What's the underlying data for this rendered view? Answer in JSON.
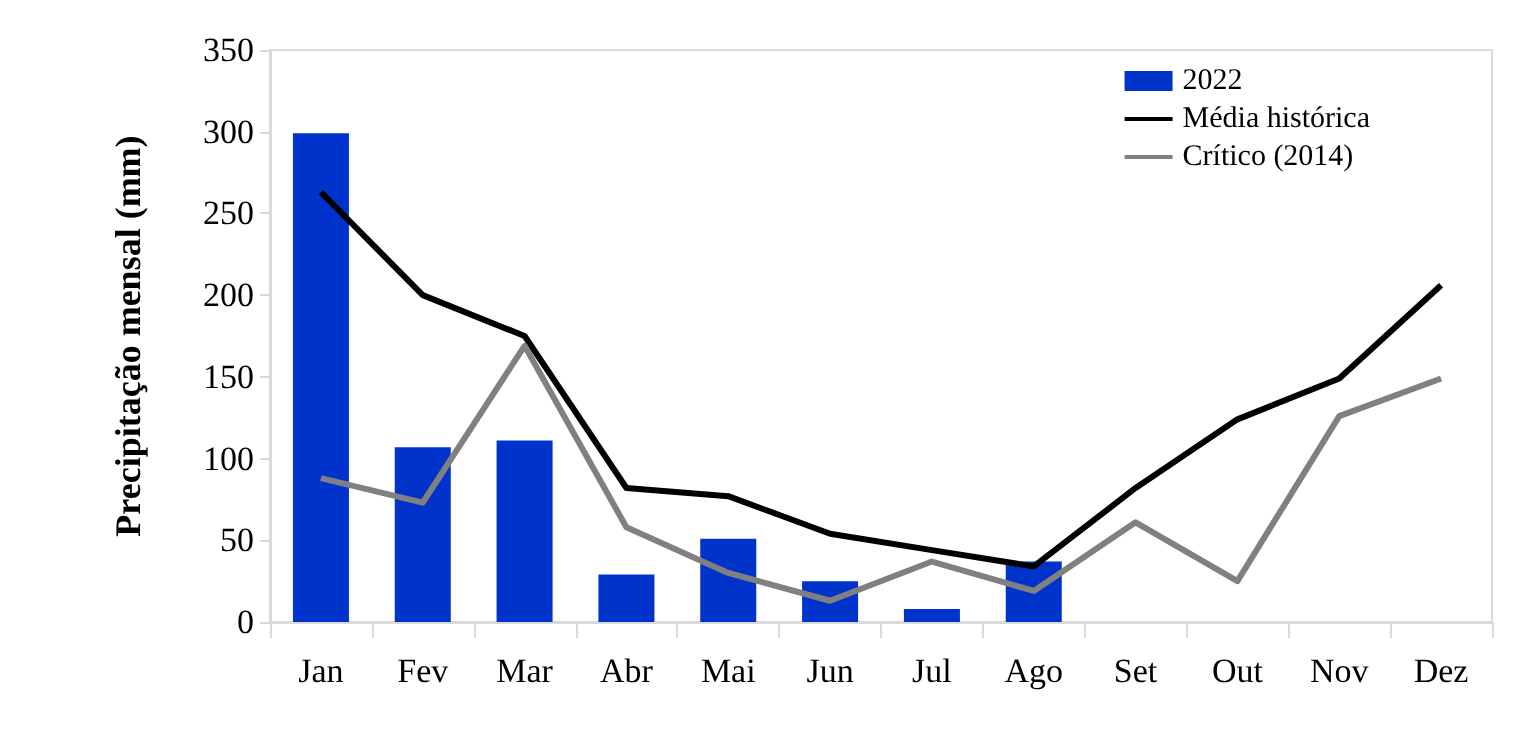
{
  "chart_data": {
    "type": "bar",
    "ylabel": "Precipitação mensal (mm)",
    "categories": [
      "Jan",
      "Fev",
      "Mar",
      "Abr",
      "Mai",
      "Jun",
      "Jul",
      "Ago",
      "Set",
      "Out",
      "Nov",
      "Dez"
    ],
    "series": [
      {
        "name": "2022",
        "color": "#0033cc",
        "values": [
          299,
          107,
          111,
          29,
          51,
          25,
          8,
          37,
          null,
          null,
          null,
          null
        ]
      },
      {
        "name": "Média histórica",
        "type": "line",
        "color": "#000000",
        "values": [
          263,
          200,
          175,
          82,
          77,
          54,
          44,
          34,
          82,
          124,
          149,
          206
        ]
      },
      {
        "name": "Crítico (2014)",
        "type": "line",
        "color": "#808080",
        "values": [
          88,
          73,
          169,
          58,
          30,
          13,
          37,
          19,
          61,
          25,
          126,
          149
        ]
      }
    ],
    "ylim": [
      0,
      350
    ],
    "yticks": [
      0,
      50,
      100,
      150,
      200,
      250,
      300,
      350
    ],
    "grid": false,
    "legend": "top right",
    "marker": "none"
  }
}
